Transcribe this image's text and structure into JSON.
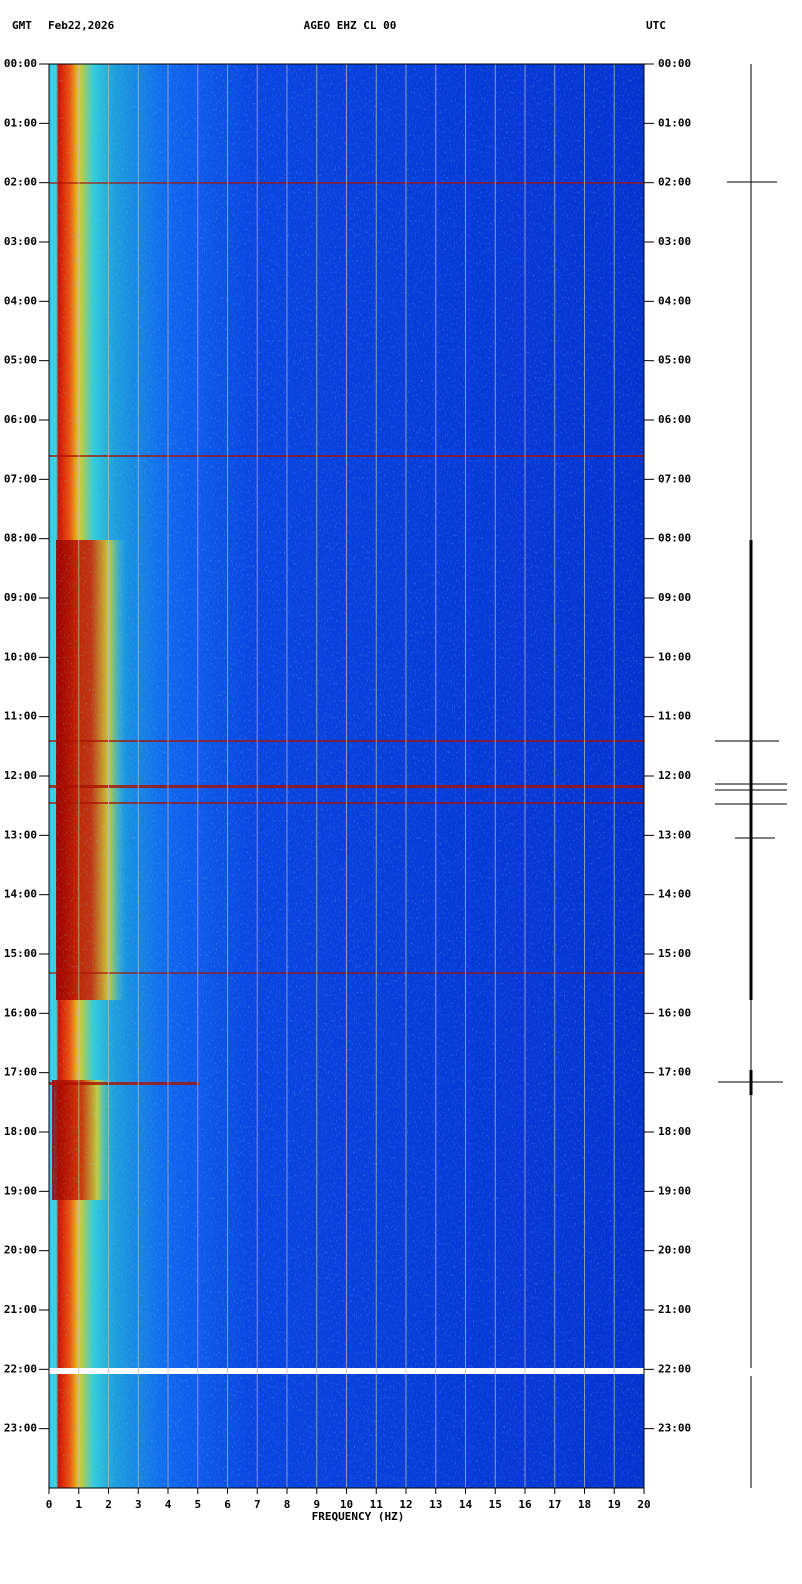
{
  "chart_data": {
    "type": "spectrogram",
    "title": "AGEO EHZ CL 00",
    "left_header": "GMT",
    "date": "Feb22,2026",
    "right_header": "UTC",
    "xlabel": "FREQUENCY (HZ)",
    "xlim": [
      0,
      20
    ],
    "xticks": [
      0,
      1,
      2,
      3,
      4,
      5,
      6,
      7,
      8,
      9,
      10,
      11,
      12,
      13,
      14,
      15,
      16,
      17,
      18,
      19,
      20
    ],
    "ylim": [
      0,
      24
    ],
    "yticks": [
      {
        "value": 0,
        "label": "00:00"
      },
      {
        "value": 1,
        "label": "01:00"
      },
      {
        "value": 2,
        "label": "02:00"
      },
      {
        "value": 3,
        "label": "03:00"
      },
      {
        "value": 4,
        "label": "04:00"
      },
      {
        "value": 5,
        "label": "05:00"
      },
      {
        "value": 6,
        "label": "06:00"
      },
      {
        "value": 7,
        "label": "07:00"
      },
      {
        "value": 8,
        "label": "08:00"
      },
      {
        "value": 9,
        "label": "09:00"
      },
      {
        "value": 10,
        "label": "10:00"
      },
      {
        "value": 11,
        "label": "11:00"
      },
      {
        "value": 12,
        "label": "12:00"
      },
      {
        "value": 13,
        "label": "13:00"
      },
      {
        "value": 14,
        "label": "14:00"
      },
      {
        "value": 15,
        "label": "15:00"
      },
      {
        "value": 16,
        "label": "16:00"
      },
      {
        "value": 17,
        "label": "17:00"
      },
      {
        "value": 18,
        "label": "18:00"
      },
      {
        "value": 19,
        "label": "19:00"
      },
      {
        "value": 20,
        "label": "20:00"
      },
      {
        "value": 21,
        "label": "21:00"
      },
      {
        "value": 22,
        "label": "22:00"
      },
      {
        "value": 23,
        "label": "23:00"
      }
    ],
    "grid": true
  }
}
